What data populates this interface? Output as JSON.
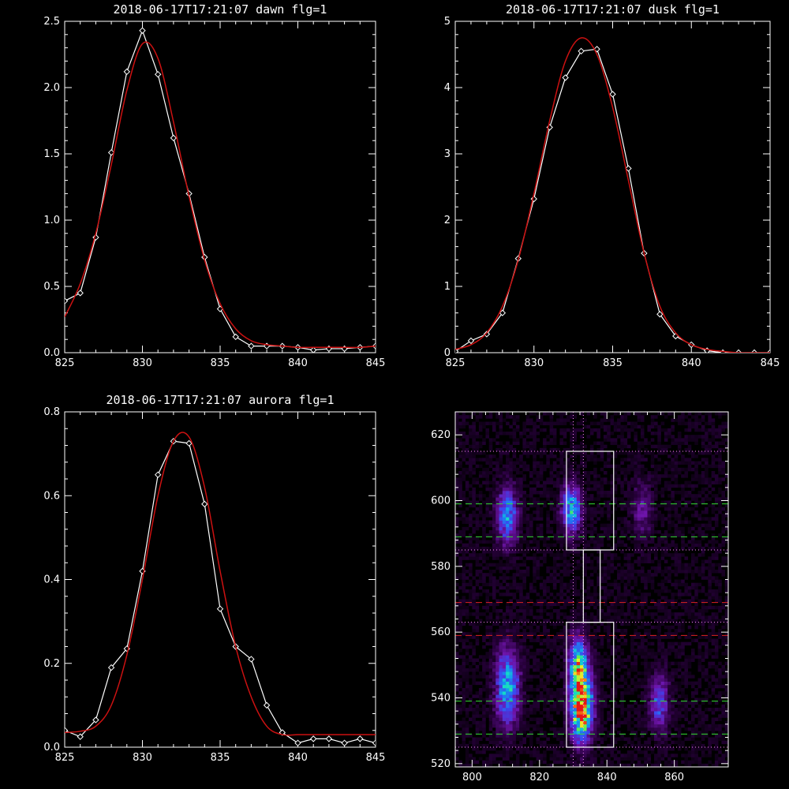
{
  "colors": {
    "background": "#000000",
    "axis": "#ffffff",
    "measured": "#ffffff",
    "fit": "#cc1111",
    "guide_green": "#33dd33",
    "guide_red": "#dd2222",
    "dotted": "#ff88ff"
  },
  "chart_data": [
    {
      "type": "line",
      "title": "2018-06-17T17:21:07 dawn flg=1",
      "xlim": [
        825,
        845
      ],
      "ylim": [
        0,
        2.5
      ],
      "xticks": [
        825,
        830,
        835,
        840,
        845
      ],
      "yticks": [
        0,
        0.5,
        1.0,
        1.5,
        2.0,
        2.5
      ],
      "ytick_labels": [
        "0.0",
        "0.5",
        "1.0",
        "1.5",
        "2.0",
        "2.5"
      ],
      "series": [
        {
          "x": [
            825,
            826,
            827,
            828,
            829,
            830,
            831,
            832,
            833,
            834,
            835,
            836,
            837,
            838,
            839,
            840,
            841,
            842,
            843,
            844,
            845
          ],
          "values": [
            0.39,
            0.45,
            0.87,
            1.51,
            2.12,
            2.43,
            2.1,
            1.62,
            1.2,
            0.72,
            0.33,
            0.12,
            0.05,
            0.05,
            0.05,
            0.04,
            0.02,
            0.03,
            0.03,
            0.04,
            0.05
          ],
          "markers": true
        },
        {
          "x": [
            825,
            826,
            827,
            828,
            829,
            830,
            831,
            832,
            833,
            834,
            835,
            836,
            837,
            838,
            839,
            840,
            841,
            842,
            843,
            844,
            845
          ],
          "values": [
            0.27,
            0.52,
            0.9,
            1.42,
            1.98,
            2.33,
            2.22,
            1.74,
            1.18,
            0.7,
            0.37,
            0.18,
            0.09,
            0.06,
            0.05,
            0.04,
            0.04,
            0.04,
            0.04,
            0.04,
            0.05
          ],
          "markers": false,
          "smooth": true
        }
      ]
    },
    {
      "type": "line",
      "title": "2018-06-17T17:21:07 dusk flg=1",
      "xlim": [
        825,
        845
      ],
      "ylim": [
        0,
        5
      ],
      "xticks": [
        825,
        830,
        835,
        840,
        845
      ],
      "yticks": [
        0,
        1,
        2,
        3,
        4,
        5
      ],
      "ytick_labels": [
        "0",
        "1",
        "2",
        "3",
        "4",
        "5"
      ],
      "series": [
        {
          "x": [
            825,
            826,
            827,
            828,
            829,
            830,
            831,
            832,
            833,
            834,
            835,
            836,
            837,
            838,
            839,
            840,
            841,
            842,
            843,
            844,
            845
          ],
          "values": [
            0.02,
            0.18,
            0.28,
            0.6,
            1.42,
            2.32,
            3.4,
            4.15,
            4.55,
            4.58,
            3.9,
            2.78,
            1.5,
            0.58,
            0.25,
            0.12,
            0.03,
            0.0,
            0.0,
            0.0,
            0.0
          ],
          "markers": true
        },
        {
          "x": [
            825,
            826,
            827,
            828,
            829,
            830,
            831,
            832,
            833,
            834,
            835,
            836,
            837,
            838,
            839,
            840,
            841,
            842,
            843,
            844,
            845
          ],
          "values": [
            0.05,
            0.12,
            0.3,
            0.7,
            1.4,
            2.4,
            3.5,
            4.4,
            4.75,
            4.5,
            3.7,
            2.6,
            1.5,
            0.7,
            0.3,
            0.12,
            0.05,
            0.02,
            0.0,
            0.0,
            0.0
          ],
          "markers": false,
          "smooth": true
        }
      ]
    },
    {
      "type": "line",
      "title": "2018-06-17T17:21:07 aurora flg=1",
      "xlim": [
        825,
        845
      ],
      "ylim": [
        0,
        0.8
      ],
      "xticks": [
        825,
        830,
        835,
        840,
        845
      ],
      "yticks": [
        0,
        0.2,
        0.4,
        0.6,
        0.8
      ],
      "ytick_labels": [
        "0.0",
        "0.2",
        "0.4",
        "0.6",
        "0.8"
      ],
      "series": [
        {
          "x": [
            825,
            826,
            827,
            828,
            829,
            830,
            831,
            832,
            833,
            834,
            835,
            836,
            837,
            838,
            839,
            840,
            841,
            842,
            843,
            844,
            845
          ],
          "values": [
            0.04,
            0.025,
            0.065,
            0.19,
            0.235,
            0.42,
            0.65,
            0.73,
            0.725,
            0.58,
            0.33,
            0.24,
            0.21,
            0.1,
            0.035,
            0.01,
            0.02,
            0.02,
            0.01,
            0.02,
            0.01
          ],
          "markers": true
        },
        {
          "x": [
            825,
            826,
            827,
            828,
            829,
            830,
            831,
            832,
            833,
            834,
            835,
            836,
            837,
            838,
            839,
            840,
            841,
            842,
            843,
            844,
            845
          ],
          "values": [
            0.035,
            0.038,
            0.05,
            0.1,
            0.22,
            0.4,
            0.6,
            0.73,
            0.74,
            0.62,
            0.42,
            0.24,
            0.12,
            0.05,
            0.03,
            0.03,
            0.03,
            0.03,
            0.03,
            0.03,
            0.03
          ],
          "markers": false,
          "smooth": true
        }
      ]
    },
    {
      "type": "heatmap",
      "title": "",
      "xlim": [
        795,
        876
      ],
      "ylim": [
        519,
        627
      ],
      "xticks": [
        800,
        820,
        840,
        860
      ],
      "yticks": [
        520,
        540,
        560,
        580,
        600,
        620
      ],
      "blobs": [
        {
          "x": 810,
          "y": 595,
          "sx": 2.2,
          "sy": 6,
          "amp": 0.45
        },
        {
          "x": 829,
          "y": 597,
          "sx": 2.0,
          "sy": 5,
          "amp": 0.55
        },
        {
          "x": 810,
          "y": 543,
          "sx": 2.4,
          "sy": 8,
          "amp": 0.55
        },
        {
          "x": 832,
          "y": 537,
          "sx": 2.2,
          "sy": 7,
          "amp": 1.0
        },
        {
          "x": 831,
          "y": 550,
          "sx": 2.0,
          "sy": 6,
          "amp": 0.55
        },
        {
          "x": 855,
          "y": 538,
          "sx": 2.0,
          "sy": 6,
          "amp": 0.35
        },
        {
          "x": 850,
          "y": 597,
          "sx": 2.0,
          "sy": 6,
          "amp": 0.2
        }
      ],
      "boxes": [
        {
          "x0": 828,
          "x1": 842,
          "y0": 585,
          "y1": 615
        },
        {
          "x0": 833,
          "x1": 838,
          "y0": 563,
          "y1": 585
        },
        {
          "x0": 828,
          "x1": 842,
          "y0": 525,
          "y1": 563
        }
      ],
      "hlines_dotted": [
        615,
        585,
        563,
        525
      ],
      "vlines_dotted": [
        830,
        833
      ],
      "hlines_green": [
        599,
        589,
        539,
        529
      ],
      "hlines_red": [
        569,
        559
      ]
    }
  ]
}
